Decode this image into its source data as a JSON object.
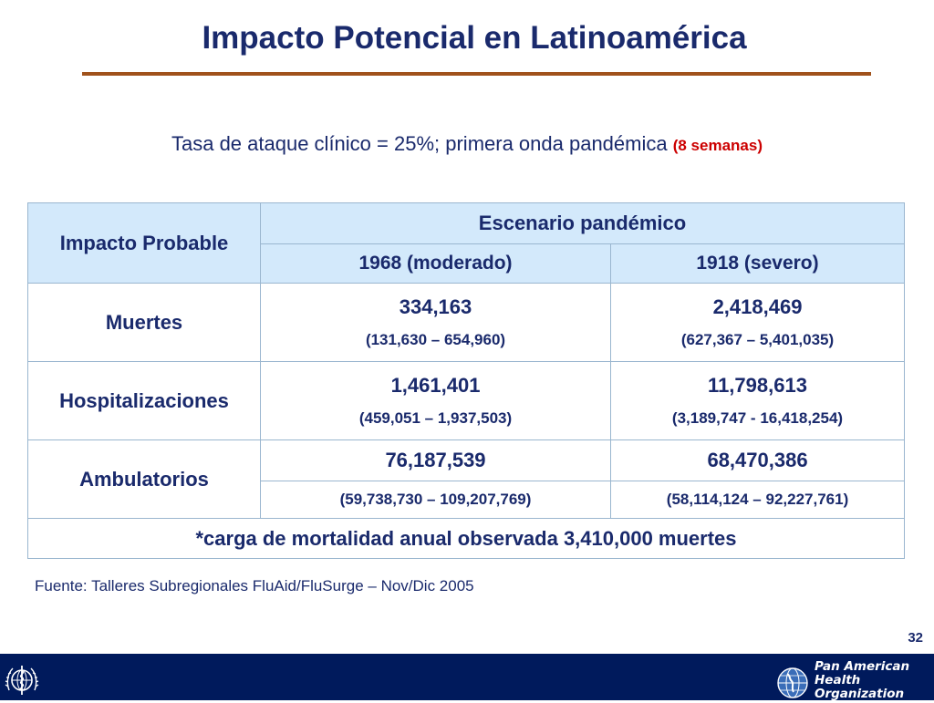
{
  "slide": {
    "title": "Impacto Potencial en Latinoamérica",
    "subtitle": {
      "text": "Tasa de ataque clínico = 25%; primera onda pandémica ",
      "accent": "(8 semanas)"
    },
    "page_number": "32",
    "source": "Fuente: Talleres Subregionales FluAid/FluSurge – Nov/Dic 2005"
  },
  "table": {
    "row_header": "Impacto Probable",
    "group_header": "Escenario pandémico",
    "columns": [
      "1968 (moderado)",
      "1918 (severo)"
    ],
    "rows": [
      {
        "label": "Muertes",
        "values": [
          {
            "main": "334,163",
            "range": "(131,630 – 654,960)"
          },
          {
            "main": "2,418,469",
            "range": "(627,367 – 5,401,035)"
          }
        ]
      },
      {
        "label": "Hospitalizaciones",
        "values": [
          {
            "main": "1,461,401",
            "range": "(459,051 – 1,937,503)"
          },
          {
            "main": "11,798,613",
            "range": "(3,189,747 - 16,418,254)"
          }
        ]
      },
      {
        "label": "Ambulatorios",
        "values": [
          {
            "main": "76,187,539",
            "range": "(59,738,730 – 109,207,769)"
          },
          {
            "main": "68,470,386",
            "range": "(58,114,124 – 92,227,761)"
          }
        ]
      }
    ],
    "note": "*carga de mortalidad anual observada 3,410,000 muertes"
  },
  "footer": {
    "org_lines": [
      "Pan American",
      "Health",
      "Organization"
    ],
    "bar_color": "#001a5c",
    "left_logo_icon": "who-emblem-icon",
    "right_logo_icon": "paho-globe-icon"
  },
  "colors": {
    "title": "#1a2a6c",
    "rule": "#a0521c",
    "accent": "#cc0000",
    "header_fill": "#d3e9fb"
  }
}
